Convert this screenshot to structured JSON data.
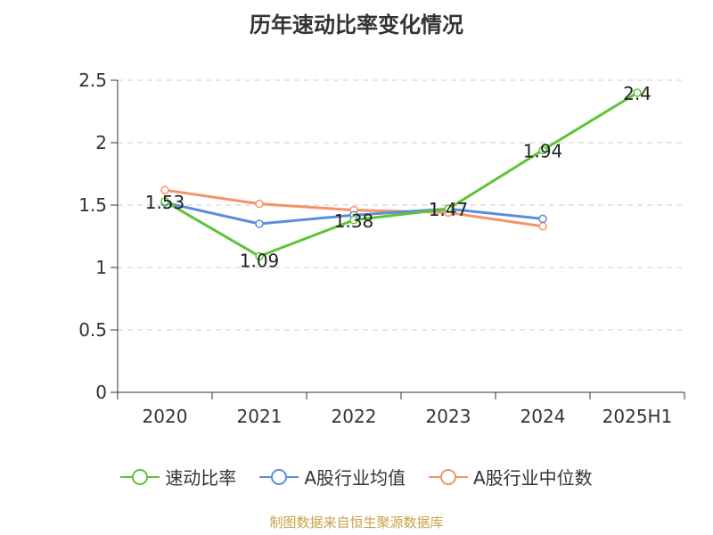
{
  "title": "历年速动比率变化情况",
  "source": "制图数据来自恒生聚源数据库",
  "colors": {
    "series0": "#5cc437",
    "series1": "#5b8ddd",
    "series2": "#f59266"
  },
  "chart_data": {
    "type": "line",
    "categories": [
      "2020",
      "2021",
      "2022",
      "2023",
      "2024",
      "2025H1"
    ],
    "ylim": [
      0,
      2.5
    ],
    "yticks": [
      "0",
      "0.5",
      "1",
      "1.5",
      "2",
      "2.5"
    ],
    "grid": true,
    "legend_position": "bottom",
    "series": [
      {
        "name": "速动比率",
        "values": [
          1.53,
          1.09,
          1.38,
          1.47,
          1.94,
          2.4
        ],
        "labels": [
          "1.53",
          "1.09",
          "1.38",
          "1.47",
          "1.94",
          "2.4"
        ]
      },
      {
        "name": "A股行业均值",
        "values": [
          1.52,
          1.35,
          1.42,
          1.47,
          1.39,
          null
        ]
      },
      {
        "name": "A股行业中位数",
        "values": [
          1.62,
          1.51,
          1.46,
          1.44,
          1.33,
          null
        ]
      }
    ]
  }
}
